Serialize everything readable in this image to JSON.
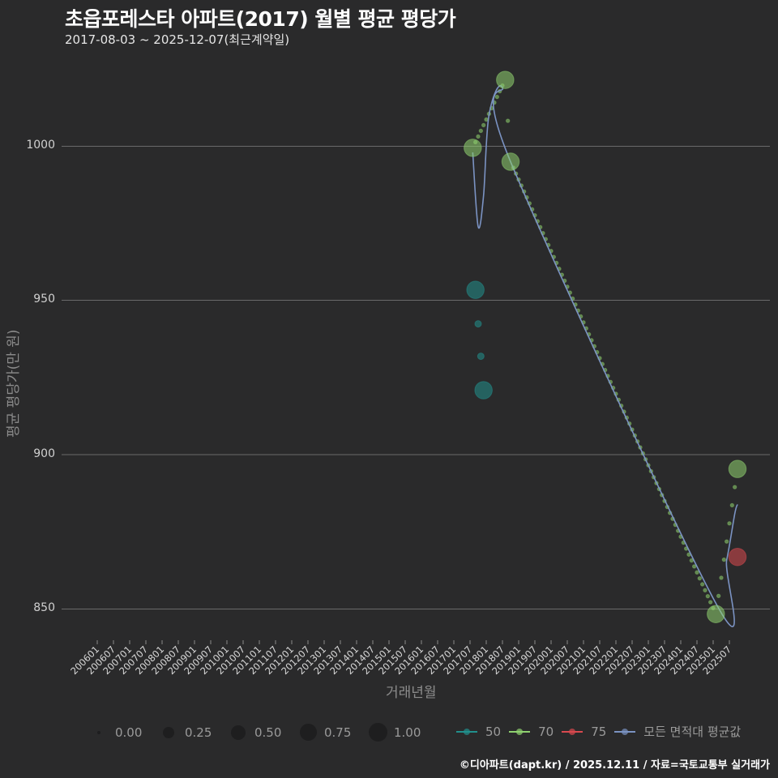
{
  "header": {
    "title": "초읍포레스타 아파트(2017) 월별 평균 평당가",
    "subtitle": "2017-08-03 ~ 2025-12-07(최근계약일)"
  },
  "axes": {
    "ylabel": "평균 평당가(만 원)",
    "xlabel": "거래년월",
    "yticks": [
      "1000",
      "950",
      "900",
      "850"
    ]
  },
  "legend": {
    "size_title": "",
    "sizes": [
      {
        "label": "0.00",
        "d": 4
      },
      {
        "label": "0.25",
        "d": 14
      },
      {
        "label": "0.50",
        "d": 18
      },
      {
        "label": "0.75",
        "d": 21
      },
      {
        "label": "1.00",
        "d": 23
      }
    ],
    "colors": [
      {
        "label": "50",
        "color": "#21908d"
      },
      {
        "label": "70",
        "color": "#8fd16f"
      },
      {
        "label": "75",
        "color": "#d9494f"
      },
      {
        "label": "모든 면적대 평균값",
        "color": "#7b93c3"
      }
    ]
  },
  "footer": {
    "credit": "©디아파트(dapt.kr) / 2025.12.11 / 자료=국토교통부 실거래가"
  },
  "chart_data": {
    "type": "scatter",
    "title": "초읍포레스타 아파트(2017) 월별 평균 평당가",
    "subtitle": "2017-08-03 ~ 2025-12-07(최근계약일)",
    "xlabel": "거래년월",
    "ylabel": "평균 평당가(만 원)",
    "ylim": [
      835,
      1030
    ],
    "yticks": [
      850,
      900,
      950,
      1000
    ],
    "xticks": [
      "200601",
      "200607",
      "200701",
      "200707",
      "200801",
      "200807",
      "200901",
      "200907",
      "201001",
      "201007",
      "201101",
      "201107",
      "201201",
      "201207",
      "201301",
      "201307",
      "201401",
      "201407",
      "201501",
      "201507",
      "201601",
      "201607",
      "201701",
      "201707",
      "201801",
      "201807",
      "201901",
      "201907",
      "202001",
      "202007",
      "202101",
      "202107",
      "202201",
      "202207",
      "202301",
      "202307",
      "202401",
      "202407",
      "202501",
      "202507"
    ],
    "grid": true,
    "legend_position": "bottom",
    "series": [
      {
        "name": "50",
        "color": "#21908d",
        "points": [
          {
            "x": "201709",
            "y": 953.5,
            "size": 0.75
          },
          {
            "x": "201710",
            "y": 942.5,
            "size": 0.0
          },
          {
            "x": "201711",
            "y": 932,
            "size": 0.0
          },
          {
            "x": "201712",
            "y": 921,
            "size": 0.75
          }
        ]
      },
      {
        "name": "70",
        "color": "#8fd16f",
        "points": [
          {
            "x": "201708",
            "y": 999.5,
            "size": 0.75
          },
          {
            "x": "201808",
            "y": 1021.5,
            "size": 0.75
          },
          {
            "x": "201810",
            "y": 995,
            "size": 0.75
          },
          {
            "x": "202502",
            "y": 848.5,
            "size": 0.75
          },
          {
            "x": "202510",
            "y": 895.5,
            "size": 0.75
          }
        ],
        "interpolated_note": "small dots along linear interpolation between observed months"
      },
      {
        "name": "75",
        "color": "#d9494f",
        "points": [
          {
            "x": "202510",
            "y": 867,
            "size": 0.75
          }
        ]
      },
      {
        "name": "모든 면적대 평균값",
        "color": "#7b93c3",
        "type": "line",
        "points": [
          {
            "x": "201708",
            "y": 998
          },
          {
            "x": "201710",
            "y": 974
          },
          {
            "x": "201712",
            "y": 984
          },
          {
            "x": "201802",
            "y": 1010
          },
          {
            "x": "201807",
            "y": 1019
          },
          {
            "x": "201810",
            "y": 995
          },
          {
            "x": "202502",
            "y": 852
          },
          {
            "x": "202506",
            "y": 866
          },
          {
            "x": "202509",
            "y": 881
          },
          {
            "x": "202510",
            "y": 884
          }
        ]
      }
    ]
  }
}
